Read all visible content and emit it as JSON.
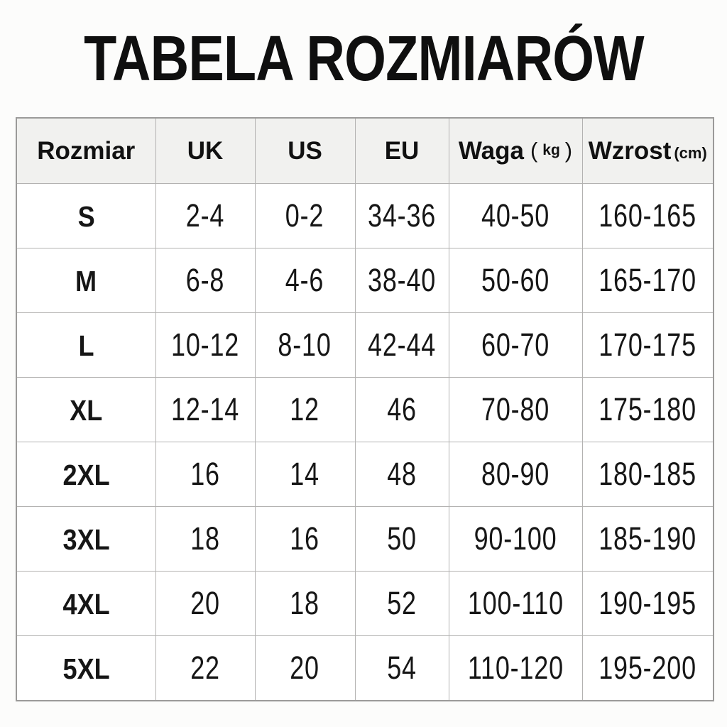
{
  "title": "TABELA ROZMIARÓW",
  "table": {
    "headers": {
      "size": "Rozmiar",
      "uk": "UK",
      "us": "US",
      "eu": "EU",
      "waga": "Waga",
      "waga_unit_open": "(",
      "waga_unit": "kg",
      "waga_unit_close": ")",
      "wzrost": "Wzrost",
      "wzrost_unit": "(cm)"
    },
    "rows": [
      {
        "size": "S",
        "uk": "2-4",
        "us": "0-2",
        "eu": "34-36",
        "waga": "40-50",
        "wzrost": "160-165"
      },
      {
        "size": "M",
        "uk": "6-8",
        "us": "4-6",
        "eu": "38-40",
        "waga": "50-60",
        "wzrost": "165-170"
      },
      {
        "size": "L",
        "uk": "10-12",
        "us": "8-10",
        "eu": "42-44",
        "waga": "60-70",
        "wzrost": "170-175"
      },
      {
        "size": "XL",
        "uk": "12-14",
        "us": "12",
        "eu": "46",
        "waga": "70-80",
        "wzrost": "175-180"
      },
      {
        "size": "2XL",
        "uk": "16",
        "us": "14",
        "eu": "48",
        "waga": "80-90",
        "wzrost": "180-185"
      },
      {
        "size": "3XL",
        "uk": "18",
        "us": "16",
        "eu": "50",
        "waga": "90-100",
        "wzrost": "185-190"
      },
      {
        "size": "4XL",
        "uk": "20",
        "us": "18",
        "eu": "52",
        "waga": "100-110",
        "wzrost": "190-195"
      },
      {
        "size": "5XL",
        "uk": "22",
        "us": "20",
        "eu": "54",
        "waga": "110-120",
        "wzrost": "195-200"
      }
    ]
  },
  "colors": {
    "background": "#fcfcfb",
    "header_bg": "#f1f1ef",
    "cell_bg": "#ffffff",
    "border": "#b3b2b1",
    "outer_border": "#9b9a99",
    "text": "#121212"
  },
  "chart_data": {
    "type": "table",
    "title": "TABELA ROZMIARÓW",
    "columns": [
      "Rozmiar",
      "UK",
      "US",
      "EU",
      "Waga (kg)",
      "Wzrost (cm)"
    ],
    "rows": [
      [
        "S",
        "2-4",
        "0-2",
        "34-36",
        "40-50",
        "160-165"
      ],
      [
        "M",
        "6-8",
        "4-6",
        "38-40",
        "50-60",
        "165-170"
      ],
      [
        "L",
        "10-12",
        "8-10",
        "42-44",
        "60-70",
        "170-175"
      ],
      [
        "XL",
        "12-14",
        "12",
        "46",
        "70-80",
        "175-180"
      ],
      [
        "2XL",
        "16",
        "14",
        "48",
        "80-90",
        "180-185"
      ],
      [
        "3XL",
        "18",
        "16",
        "50",
        "90-100",
        "185-190"
      ],
      [
        "4XL",
        "20",
        "18",
        "52",
        "100-110",
        "190-195"
      ],
      [
        "5XL",
        "22",
        "20",
        "54",
        "110-120",
        "195-200"
      ]
    ],
    "layout": "header row shaded light gray, 8 data rows, thin gray grid, title centered above"
  }
}
